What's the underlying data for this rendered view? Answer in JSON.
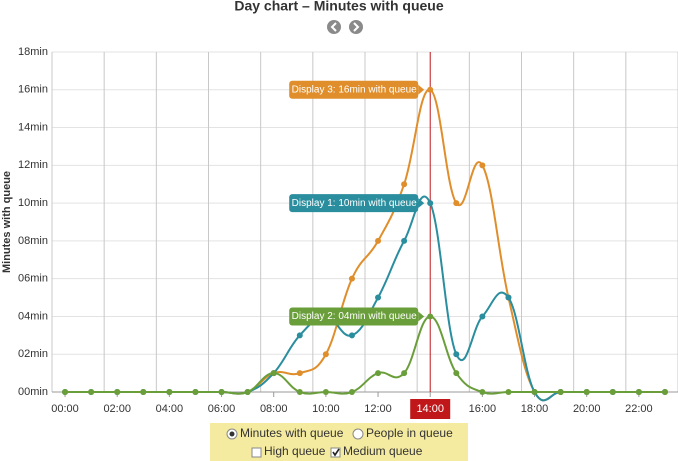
{
  "chart_data": {
    "type": "line",
    "title": "Day chart – Minutes with queue",
    "ylabel": "Minutes with queue",
    "x": [
      0,
      1,
      2,
      3,
      4,
      5,
      6,
      7,
      8,
      9,
      10,
      11,
      12,
      13,
      14,
      15,
      16,
      17,
      18,
      19,
      20,
      21,
      22,
      23
    ],
    "xlim": [
      -0.5,
      23.5
    ],
    "xticks": [
      {
        "value": 0,
        "label": "00:00"
      },
      {
        "value": 2,
        "label": "02:00"
      },
      {
        "value": 4,
        "label": "04:00"
      },
      {
        "value": 6,
        "label": "06:00"
      },
      {
        "value": 8,
        "label": "08:00"
      },
      {
        "value": 10,
        "label": "10:00"
      },
      {
        "value": 12,
        "label": "12:00"
      },
      {
        "value": 14,
        "label": "14:00"
      },
      {
        "value": 16,
        "label": "16:00"
      },
      {
        "value": 18,
        "label": "18:00"
      },
      {
        "value": 20,
        "label": "20:00"
      },
      {
        "value": 22,
        "label": "22:00"
      }
    ],
    "ylim": [
      0,
      18
    ],
    "yticks": [
      {
        "value": 0,
        "label": "00min"
      },
      {
        "value": 2,
        "label": "02min"
      },
      {
        "value": 4,
        "label": "04min"
      },
      {
        "value": 6,
        "label": "06min"
      },
      {
        "value": 8,
        "label": "08min"
      },
      {
        "value": 10,
        "label": "10min"
      },
      {
        "value": 12,
        "label": "12min"
      },
      {
        "value": 14,
        "label": "14min"
      },
      {
        "value": 16,
        "label": "16min"
      },
      {
        "value": 18,
        "label": "18min"
      }
    ],
    "grid": true,
    "series": [
      {
        "color": "#e08e2b",
        "tooltip": "Display 3: 16min with queue",
        "values": [
          0,
          0,
          0,
          0,
          0,
          0,
          0,
          0,
          1,
          1,
          2,
          6,
          8,
          11,
          16,
          10,
          12,
          5,
          0,
          0,
          0,
          0,
          0,
          0
        ]
      },
      {
        "color": "#2a8e9e",
        "tooltip": "Display 1: 10min with queue",
        "values": [
          0,
          0,
          0,
          0,
          0,
          0,
          0,
          0,
          1,
          3,
          4,
          3,
          5,
          8,
          10,
          2,
          4,
          5,
          0,
          0,
          0,
          0,
          0,
          0
        ]
      },
      {
        "color": "#6a9e3a",
        "tooltip": "Display 2: 04min with queue",
        "values": [
          0,
          0,
          0,
          0,
          0,
          0,
          0,
          0,
          1,
          0,
          0,
          0,
          1,
          1,
          4,
          1,
          0,
          0,
          0,
          0,
          0,
          0,
          0,
          0
        ]
      }
    ],
    "crosshair": {
      "x": 14,
      "label": "14:00",
      "color": "#c0171b"
    }
  },
  "controls": {
    "radios": [
      {
        "label": "Minutes with queue",
        "checked": true
      },
      {
        "label": "People in queue",
        "checked": false
      }
    ],
    "checkboxes": [
      {
        "label": "High queue",
        "checked": false
      },
      {
        "label": "Medium queue",
        "checked": true
      }
    ]
  }
}
